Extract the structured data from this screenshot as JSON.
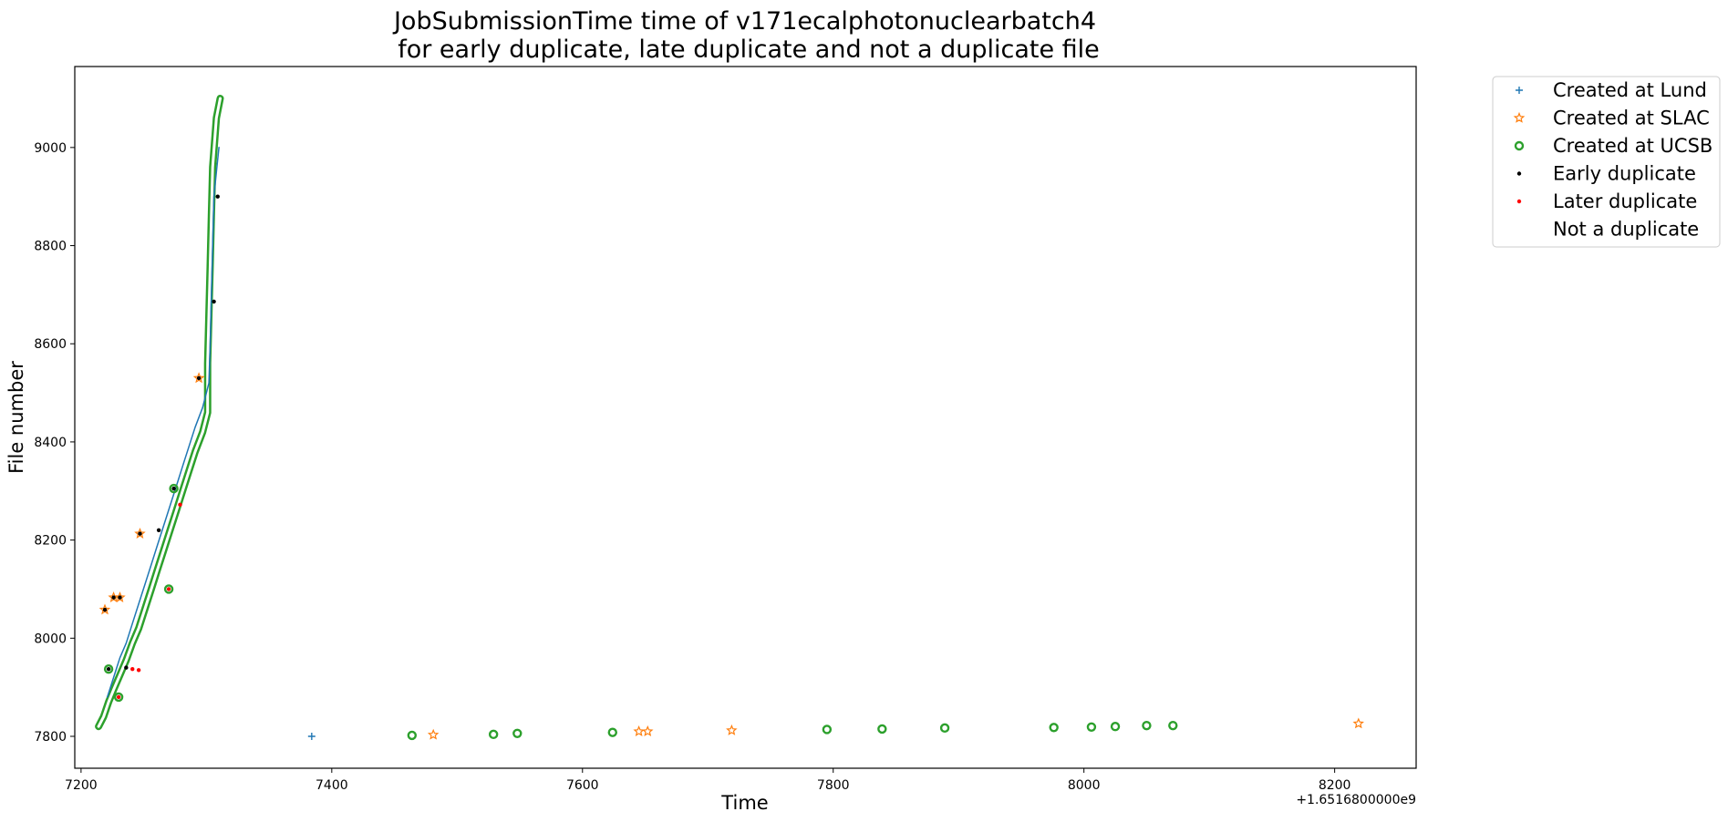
{
  "chart_data": {
    "type": "scatter",
    "title": [
      "JobSubmissionTime time of v171ecalphotonuclearbatch4",
      "for early duplicate, late duplicate and not a duplicate file"
    ],
    "xlabel": "Time",
    "ylabel": "File number",
    "x_offset_label": "+1.6516800000e9",
    "xlim": [
      7195,
      8265
    ],
    "ylim": [
      7735,
      9165
    ],
    "xticks": [
      7200,
      7400,
      7600,
      7800,
      8000,
      8200
    ],
    "yticks": [
      7800,
      8000,
      8200,
      8400,
      8600,
      8800,
      9000
    ],
    "legend_position": "outside top-right",
    "series": [
      {
        "name": "Created at Lund",
        "marker": "plus",
        "color": "#1f77b4",
        "curve": [
          [
            7221,
            7880
          ],
          [
            7226,
            7920
          ],
          [
            7231,
            7960
          ],
          [
            7236,
            7990
          ],
          [
            7241,
            8030
          ],
          [
            7246,
            8070
          ],
          [
            7251,
            8110
          ],
          [
            7256,
            8150
          ],
          [
            7261,
            8190
          ],
          [
            7266,
            8230
          ],
          [
            7271,
            8270
          ],
          [
            7276,
            8310
          ],
          [
            7281,
            8350
          ],
          [
            7286,
            8390
          ],
          [
            7291,
            8430
          ],
          [
            7297,
            8470
          ],
          [
            7302,
            8520
          ],
          [
            7303,
            8600
          ],
          [
            7304,
            8700
          ],
          [
            7305,
            8800
          ],
          [
            7306,
            8900
          ],
          [
            7308,
            8950
          ],
          [
            7310,
            9000
          ]
        ],
        "points": [
          [
            7384,
            7800
          ]
        ]
      },
      {
        "name": "Created at SLAC",
        "marker": "star",
        "color": "#ff7f0e",
        "points": [
          [
            7219,
            8058
          ],
          [
            7226,
            8083
          ],
          [
            7231,
            8083
          ],
          [
            7247,
            8213
          ],
          [
            7294,
            8530
          ],
          [
            7481,
            7803
          ],
          [
            7645,
            7810
          ],
          [
            7652,
            7810
          ],
          [
            7719,
            7812
          ],
          [
            8219,
            7826
          ]
        ]
      },
      {
        "name": "Created at UCSB",
        "marker": "circle",
        "color": "#2ca02c",
        "curve": [
          [
            7214,
            7820
          ],
          [
            7218,
            7840
          ],
          [
            7222,
            7870
          ],
          [
            7226,
            7895
          ],
          [
            7231,
            7925
          ],
          [
            7236,
            7955
          ],
          [
            7241,
            7990
          ],
          [
            7246,
            8020
          ],
          [
            7251,
            8060
          ],
          [
            7256,
            8100
          ],
          [
            7261,
            8140
          ],
          [
            7266,
            8180
          ],
          [
            7271,
            8220
          ],
          [
            7276,
            8260
          ],
          [
            7281,
            8300
          ],
          [
            7286,
            8340
          ],
          [
            7291,
            8380
          ],
          [
            7297,
            8420
          ],
          [
            7301,
            8460
          ],
          [
            7301,
            8560
          ],
          [
            7302,
            8660
          ],
          [
            7303,
            8760
          ],
          [
            7304,
            8860
          ],
          [
            7305,
            8960
          ],
          [
            7308,
            9060
          ],
          [
            7311,
            9100
          ]
        ],
        "points": [
          [
            7222,
            7937
          ],
          [
            7230,
            7880
          ],
          [
            7270,
            8100
          ],
          [
            7274,
            8305
          ],
          [
            7464,
            7802
          ],
          [
            7529,
            7804
          ],
          [
            7548,
            7806
          ],
          [
            7624,
            7808
          ],
          [
            7795,
            7814
          ],
          [
            7839,
            7815
          ],
          [
            7889,
            7817
          ],
          [
            7976,
            7818
          ],
          [
            8006,
            7819
          ],
          [
            8025,
            7820
          ],
          [
            8050,
            7822
          ],
          [
            8071,
            7822
          ]
        ]
      },
      {
        "name": "Early duplicate",
        "marker": "dot",
        "color": "#000000",
        "points": [
          [
            7219,
            8058
          ],
          [
            7226,
            8083
          ],
          [
            7231,
            8083
          ],
          [
            7247,
            8213
          ],
          [
            7262,
            8220
          ],
          [
            7294,
            8530
          ],
          [
            7306,
            8686
          ],
          [
            7309,
            8900
          ],
          [
            7222,
            7937
          ],
          [
            7274,
            8305
          ],
          [
            7236,
            7940
          ]
        ]
      },
      {
        "name": "Later duplicate",
        "marker": "dot",
        "color": "#ff0000",
        "points": [
          [
            7230,
            7880
          ],
          [
            7270,
            8100
          ],
          [
            7241,
            7937
          ],
          [
            7246,
            7935
          ],
          [
            7279,
            8272
          ]
        ]
      },
      {
        "name": "Not a duplicate",
        "marker": "none",
        "color": "#ffffff",
        "points": []
      }
    ]
  }
}
